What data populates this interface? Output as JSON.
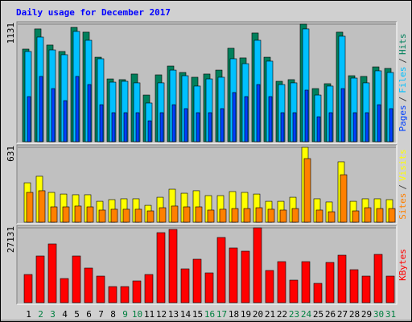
{
  "title": "Daily usage for December 2017",
  "separator": "/",
  "categories": [
    "1",
    "2",
    "3",
    "4",
    "5",
    "6",
    "7",
    "8",
    "9",
    "10",
    "11",
    "12",
    "13",
    "14",
    "15",
    "16",
    "17",
    "18",
    "19",
    "20",
    "21",
    "22",
    "23",
    "24",
    "25",
    "26",
    "27",
    "28",
    "29",
    "30",
    "31"
  ],
  "category_colors": [
    "#000000",
    "#008040",
    "#008040",
    "#000000",
    "#000000",
    "#000000",
    "#000000",
    "#000000",
    "#008040",
    "#008040",
    "#000000",
    "#000000",
    "#000000",
    "#000000",
    "#000000",
    "#008040",
    "#008040",
    "#000000",
    "#000000",
    "#000000",
    "#000000",
    "#000000",
    "#008040",
    "#008040",
    "#000000",
    "#000000",
    "#000000",
    "#000000",
    "#000000",
    "#008040",
    "#008040"
  ],
  "chart_data": [
    {
      "type": "bar",
      "ylim": [
        0,
        1131
      ],
      "yticks": [
        1131
      ],
      "grid": true,
      "series": [
        {
          "name": "Hits",
          "color": "#00805c",
          "values": [
            891,
            1085,
            930,
            868,
            1100,
            1054,
            813,
            604,
            597,
            651,
            449,
            643,
            728,
            666,
            620,
            651,
            689,
            899,
            806,
            1046,
            813,
            581,
            597,
            1131,
            511,
            558,
            1054,
            635,
            628,
            720,
            705
          ]
        },
        {
          "name": "Files",
          "color": "#00c0ff",
          "values": [
            868,
            1007,
            883,
            837,
            1061,
            976,
            798,
            573,
            581,
            566,
            372,
            566,
            689,
            635,
            535,
            604,
            620,
            798,
            751,
            976,
            775,
            550,
            566,
            1085,
            449,
            535,
            1015,
            612,
            566,
            682,
            666
          ]
        },
        {
          "name": "Pages",
          "color": "#0040ff",
          "values": [
            434,
            628,
            511,
            395,
            628,
            550,
            356,
            279,
            279,
            279,
            201,
            279,
            356,
            318,
            279,
            279,
            318,
            473,
            434,
            550,
            434,
            279,
            279,
            496,
            240,
            279,
            511,
            279,
            279,
            356,
            318
          ]
        }
      ]
    },
    {
      "type": "bar",
      "ylim": [
        0,
        631
      ],
      "yticks": [
        631
      ],
      "grid": true,
      "series": [
        {
          "name": "Visits",
          "color": "#ffff00",
          "values": [
            332,
            387,
            251,
            237,
            231,
            231,
            176,
            190,
            197,
            197,
            142,
            210,
            278,
            244,
            265,
            224,
            224,
            258,
            251,
            237,
            176,
            176,
            210,
            631,
            197,
            170,
            509,
            176,
            197,
            197,
            190
          ]
        },
        {
          "name": "Sites",
          "color": "#ff8000",
          "values": [
            251,
            265,
            129,
            129,
            136,
            129,
            102,
            109,
            109,
            109,
            95,
            122,
            136,
            129,
            129,
            102,
            109,
            115,
            115,
            122,
            109,
            102,
            115,
            536,
            102,
            88,
            400,
            95,
            122,
            115,
            115
          ]
        }
      ]
    },
    {
      "type": "bar",
      "ylim": [
        0,
        27131
      ],
      "yticks": [
        27131
      ],
      "grid": true,
      "series": [
        {
          "name": "KBytes",
          "color": "#ff0000",
          "values": [
            10210,
            16919,
            21294,
            8751,
            16919,
            12543,
            9626,
            5834,
            5834,
            7876,
            10210,
            25378,
            26545,
            12251,
            15752,
            10793,
            23628,
            19836,
            18669,
            27131,
            11668,
            14877,
            8168,
            14877,
            7001,
            14585,
            17210,
            11960,
            9626,
            17502,
            9626
          ]
        }
      ]
    }
  ]
}
